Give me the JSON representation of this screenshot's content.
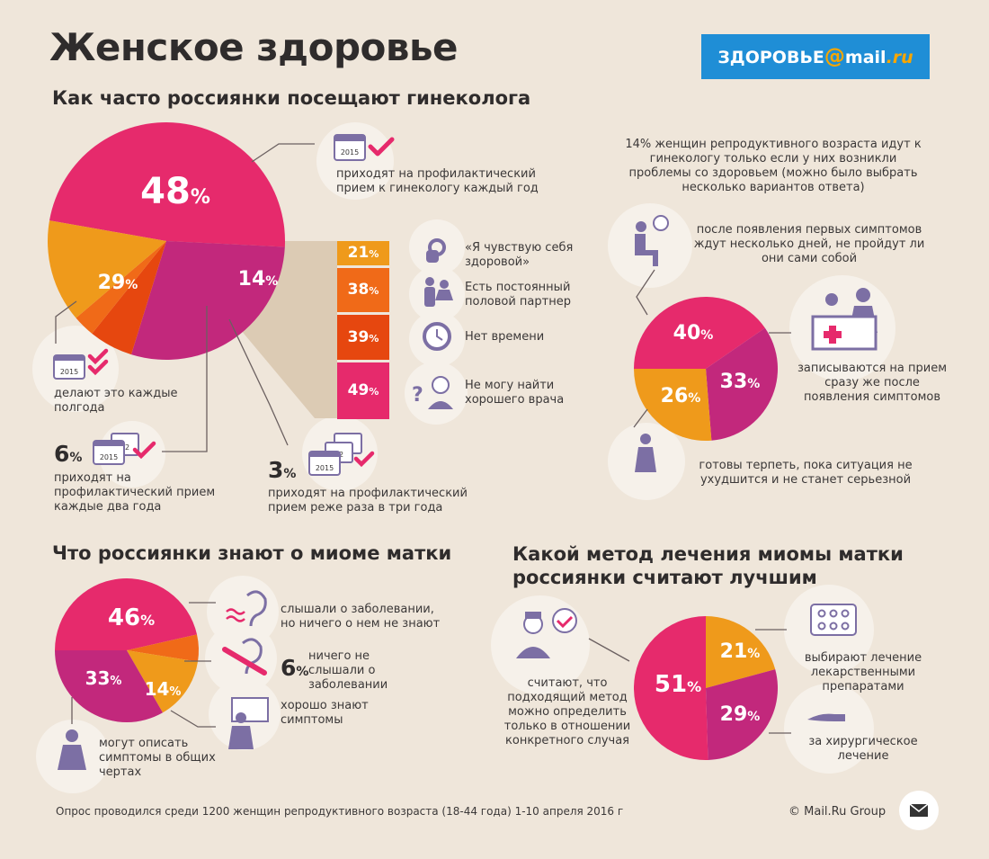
{
  "title": "Женское здоровье",
  "brand": {
    "part1": "ЗДОРОВЬЕ",
    "at": "@",
    "part2": "mail",
    "part3": ".ru"
  },
  "section1": {
    "title": "Как часто россиянки посещают гинеколога",
    "annual": "приходят на профилактический прием к гинекологу каждый год",
    "half_year": "делают это каждые полгода",
    "two_years_pct": "6",
    "two_years": "приходят на профилактический прием каждые два года",
    "three_years_pct": "3",
    "three_years": "приходят на профилактический прием реже раза в три года",
    "reasons": [
      {
        "text": "«Я чувствую себя здоровой»"
      },
      {
        "text": "Есть постоянный половой партнер"
      },
      {
        "text": "Нет времени"
      },
      {
        "text": "Не могу найти хорошего врача"
      }
    ]
  },
  "section2": {
    "note": "14% женщин репродуктивного возраста идут к гинекологу только если у них возникли проблемы со здоровьем (можно было выбрать несколько вариантов ответа)",
    "wait": "после появления первых симптомов ждут несколько дней, не пройдут ли они сами собой",
    "signup": "записываются на прием сразу же после появления симптомов",
    "endure": "готовы терпеть, пока ситуация не ухудшится и не станет серьезной"
  },
  "section3": {
    "title": "Что россиянки знают о миоме матки",
    "heard": "слышали о заболевании, но ничего о нем не знают",
    "never_pct": "6",
    "never": "ничего не слышали о заболевании",
    "know": "хорошо знают симптомы",
    "describe": "могут описать симптомы в общих чертах"
  },
  "section4": {
    "title_line1": "Какой метод лечения миомы матки",
    "title_line2": "россиянки считают лучшим",
    "individual": "считают, что подходящий метод можно определить только в отношении конкретного случая",
    "drugs": "выбирают лечение лекарственными препаратами",
    "surgery": "за хирургическое лечение"
  },
  "icons": {
    "calendar_year": "2015",
    "calendar_month": "12",
    "calendar_month2": "09"
  },
  "footer": "Опрос проводился среди 1200 женщин репродуктивного возраста (18-44 года) 1-10 апреля 2016 г",
  "copyright": "© Mail.Ru Group",
  "colors": {
    "magenta": "#e62a6c",
    "purple": "#c2287c",
    "orange": "#ef9a1b",
    "red_orange": "#f06a18",
    "red": "#e6470f",
    "beige": "#dccbb4"
  },
  "chart_data": [
    {
      "type": "pie",
      "name": "visits",
      "labels": [
        "каждый год",
        "каждые полгода",
        "каждые два года",
        "реже раза в три года",
        "по необходимости"
      ],
      "values": [
        48,
        29,
        6,
        3,
        14
      ]
    },
    {
      "type": "bar",
      "name": "reasons",
      "categories": [
        "«Я чувствую себя здоровой»",
        "Есть постоянный половой партнер",
        "Нет времени",
        "Не могу найти хорошего врача"
      ],
      "values": [
        21,
        38,
        39,
        49
      ]
    },
    {
      "type": "pie",
      "name": "symptoms_reaction",
      "labels": [
        "ждут несколько дней",
        "записываются сразу",
        "готовы терпеть"
      ],
      "values": [
        40,
        33,
        26
      ]
    },
    {
      "type": "pie",
      "name": "myoma_knowledge",
      "labels": [
        "слышали, но не знают",
        "не слышали",
        "хорошо знают симптомы",
        "могут описать в общих чертах"
      ],
      "values": [
        46,
        6,
        14,
        33
      ]
    },
    {
      "type": "pie",
      "name": "treatment",
      "labels": [
        "индивидуально",
        "лекарственные препараты",
        "хирургическое лечение"
      ],
      "values": [
        51,
        21,
        29
      ]
    }
  ]
}
